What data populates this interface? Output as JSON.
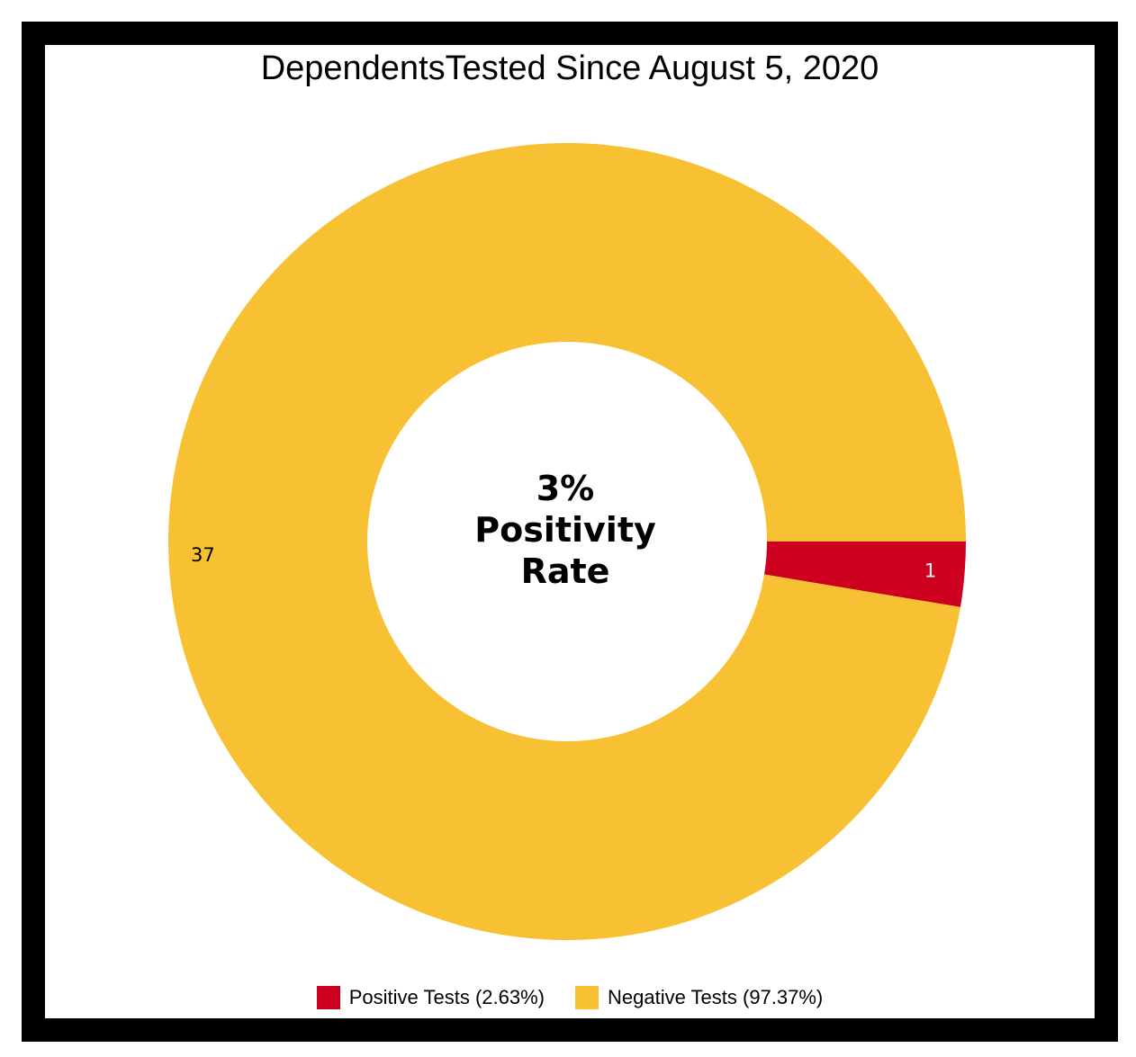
{
  "chart_data": {
    "type": "pie",
    "style": "donut",
    "title": "DependentsTested Since August 5, 2020",
    "center_text": [
      "3%",
      "Positivity",
      "Rate"
    ],
    "series": [
      {
        "name": "Positive Tests (2.63%)",
        "value": 1,
        "percent": 2.63,
        "color": "#CE0020",
        "label": "1",
        "label_color": "#ffffff"
      },
      {
        "name": "Negative Tests (97.37%)",
        "value": 37,
        "percent": 97.37,
        "color": "#F8C133",
        "label": "37",
        "label_color": "#000000"
      }
    ],
    "legend_position": "bottom"
  },
  "frame": {
    "border_color": "#000000",
    "background": "#ffffff"
  }
}
